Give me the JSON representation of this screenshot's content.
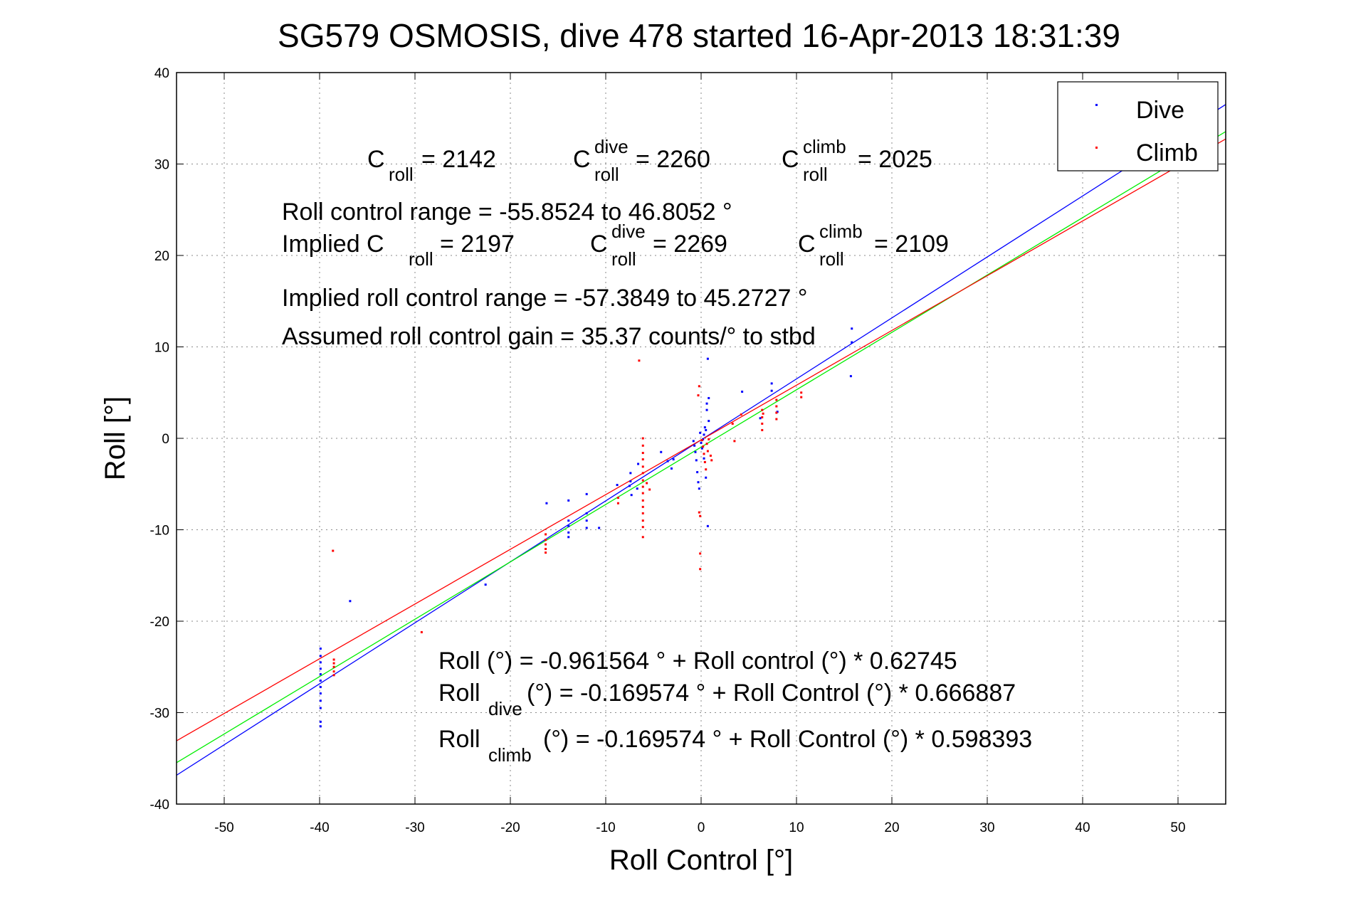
{
  "chart_data": {
    "type": "scatter",
    "title": "SG579 OSMOSIS, dive 478 started 16-Apr-2013 18:31:39",
    "xlabel": "Roll Control [°]",
    "ylabel": "Roll [°]",
    "xlim": [
      -55,
      55
    ],
    "ylim": [
      -40,
      40
    ],
    "x_ticks": [
      -50,
      -40,
      -30,
      -20,
      -10,
      0,
      10,
      20,
      30,
      40,
      50
    ],
    "y_ticks": [
      -40,
      -30,
      -20,
      -10,
      0,
      10,
      20,
      30,
      40
    ],
    "grid": true,
    "legend_position": "top-right",
    "series": [
      {
        "name": "Dive",
        "color": "#0000ff",
        "marker": "dot",
        "points": [
          [
            -39.9,
            -23
          ],
          [
            -39.9,
            -23.8
          ],
          [
            -39.9,
            -24.5
          ],
          [
            -39.9,
            -25.2
          ],
          [
            -39.9,
            -25.8
          ],
          [
            -39.9,
            -26.5
          ],
          [
            -39.9,
            -27.2
          ],
          [
            -39.9,
            -27.9
          ],
          [
            -39.9,
            -28.7
          ],
          [
            -39.9,
            -29.5
          ],
          [
            -39.9,
            -31
          ],
          [
            -39.9,
            -31.5
          ],
          [
            -36.8,
            -17.8
          ],
          [
            -22.6,
            -16
          ],
          [
            -16.2,
            -7.1
          ],
          [
            -13.9,
            -6.8
          ],
          [
            -13.9,
            -9
          ],
          [
            -13.9,
            -9.6
          ],
          [
            -13.9,
            -10.3
          ],
          [
            -13.9,
            -10.8
          ],
          [
            -12,
            -6.1
          ],
          [
            -12,
            -8.2
          ],
          [
            -12,
            -9
          ],
          [
            -12,
            -9.8
          ],
          [
            -10.7,
            -9.8
          ],
          [
            -8.8,
            -5.1
          ],
          [
            -7.5,
            -5.2
          ],
          [
            -7.4,
            -3.8
          ],
          [
            -7.4,
            -4.7
          ],
          [
            -7.3,
            -6.2
          ],
          [
            -6.7,
            -5.5
          ],
          [
            -6.6,
            -2.8
          ],
          [
            -4.2,
            -1.5
          ],
          [
            -3.5,
            -2.5
          ],
          [
            -3.1,
            -3.3
          ],
          [
            -2.9,
            -2.3
          ],
          [
            -0.8,
            -0.3
          ],
          [
            -0.7,
            -0.8
          ],
          [
            -0.6,
            -1.5
          ],
          [
            -0.5,
            -2.4
          ],
          [
            -0.4,
            -3.7
          ],
          [
            -0.3,
            -4.8
          ],
          [
            -0.2,
            -5.5
          ],
          [
            -0.1,
            0.6
          ],
          [
            0,
            -0.5
          ],
          [
            0.1,
            -1.1
          ],
          [
            0.2,
            -0.1
          ],
          [
            0.3,
            0.4
          ],
          [
            0.3,
            -2.2
          ],
          [
            0.4,
            1.2
          ],
          [
            0.5,
            0.9
          ],
          [
            0.5,
            -4.3
          ],
          [
            0.6,
            3.1
          ],
          [
            0.6,
            3.8
          ],
          [
            0.7,
            8.7
          ],
          [
            0.7,
            -9.6
          ],
          [
            0.8,
            1.9
          ],
          [
            0.8,
            4.4
          ],
          [
            4.3,
            5.1
          ],
          [
            6.2,
            2.2
          ],
          [
            7.4,
            5.2
          ],
          [
            7.4,
            6
          ],
          [
            8,
            2.9
          ],
          [
            15.7,
            6.8
          ],
          [
            15.8,
            10.5
          ],
          [
            15.8,
            12
          ]
        ]
      },
      {
        "name": "Climb",
        "color": "#ff0000",
        "marker": "dot",
        "points": [
          [
            -38.6,
            -12.3
          ],
          [
            -38.5,
            -24.2
          ],
          [
            -38.5,
            -24.6
          ],
          [
            -38.5,
            -25
          ],
          [
            -38.5,
            -25.5
          ],
          [
            -38.5,
            -25.9
          ],
          [
            -29.3,
            -21.2
          ],
          [
            -16.3,
            -10.5
          ],
          [
            -16.3,
            -11.1
          ],
          [
            -16.3,
            -11.6
          ],
          [
            -16.3,
            -12.1
          ],
          [
            -16.3,
            -12.5
          ],
          [
            -8.7,
            -6.5
          ],
          [
            -8.7,
            -7.1
          ],
          [
            -6.5,
            8.5
          ],
          [
            -6.1,
            0
          ],
          [
            -6.1,
            -0.8
          ],
          [
            -6.1,
            -1.6
          ],
          [
            -6.1,
            -2.3
          ],
          [
            -6.1,
            -3.1
          ],
          [
            -6.1,
            -3.8
          ],
          [
            -6.1,
            -4.6
          ],
          [
            -6.1,
            -5.3
          ],
          [
            -6.1,
            -6
          ],
          [
            -6.1,
            -6.8
          ],
          [
            -6.1,
            -7.5
          ],
          [
            -6.1,
            -8.2
          ],
          [
            -6.1,
            -9
          ],
          [
            -6.1,
            -9.7
          ],
          [
            -6.1,
            -10.8
          ],
          [
            -5.7,
            -4.9
          ],
          [
            -5.4,
            -5.6
          ],
          [
            -0.3,
            4.7
          ],
          [
            -0.2,
            5.7
          ],
          [
            -0.2,
            -8.1
          ],
          [
            -0.1,
            -8.5
          ],
          [
            -0.1,
            -12.6
          ],
          [
            -0.1,
            -14.3
          ],
          [
            0.1,
            -0.2
          ],
          [
            0.2,
            -0.9
          ],
          [
            0.3,
            -1.7
          ],
          [
            0.4,
            -2.6
          ],
          [
            0.5,
            -3.4
          ],
          [
            0.6,
            -0.6
          ],
          [
            0.7,
            -1.4
          ],
          [
            0.8,
            -0.1
          ],
          [
            1.0,
            -1.9
          ],
          [
            1.1,
            -2.4
          ],
          [
            3.3,
            1.6
          ],
          [
            3.5,
            -0.3
          ],
          [
            4.2,
            2.6
          ],
          [
            6.4,
            0.9
          ],
          [
            6.4,
            1.6
          ],
          [
            6.4,
            2.3
          ],
          [
            6.4,
            3.1
          ],
          [
            6.5,
            2.7
          ],
          [
            7.9,
            2.1
          ],
          [
            7.9,
            2.8
          ],
          [
            7.9,
            3.5
          ],
          [
            7.9,
            4.2
          ],
          [
            10.5,
            4.5
          ],
          [
            10.5,
            5
          ]
        ]
      }
    ],
    "fit_lines": [
      {
        "color": "#0000ff",
        "intercept": -0.169574,
        "slope": 0.666887
      },
      {
        "color": "#00ee00",
        "intercept": -0.961564,
        "slope": 0.62745
      },
      {
        "color": "#ff0000",
        "intercept": -0.169574,
        "slope": 0.598393
      }
    ],
    "annotations": {
      "c_roll": {
        "main": "C",
        "sub": "roll",
        "value": " = 2142"
      },
      "c_roll_dive": {
        "main": "C",
        "sup": "dive",
        "sub": "roll",
        "value": " = 2260"
      },
      "c_roll_climb": {
        "main": "C",
        "sup": "climb",
        "sub": "roll",
        "value": " = 2025"
      },
      "roll_control_range": "Roll control range = -55.8524 to 46.8052 °",
      "implied_prefix": "Implied C",
      "implied_sub": "roll",
      "implied_value": " = 2197",
      "implied_dive": {
        "main": "C",
        "sup": "dive",
        "sub": "roll",
        "value": " = 2269"
      },
      "implied_climb": {
        "main": "C",
        "sup": "climb",
        "sub": "roll",
        "value": " = 2109"
      },
      "implied_range": "Implied roll control range = -57.3849 to 45.2727 °",
      "gain": "Assumed roll control gain = 35.37 counts/° to stbd",
      "eq_all": "Roll (°) = -0.961564 ° + Roll control (°) * 0.62745",
      "eq_dive_main": "Roll",
      "eq_dive_sub": "dive",
      "eq_dive_rest": " (°) = -0.169574 ° + Roll Control (°) * 0.666887",
      "eq_climb_main": "Roll",
      "eq_climb_sub": "climb",
      "eq_climb_rest": " (°) = -0.169574 ° + Roll Control (°) * 0.598393"
    }
  }
}
